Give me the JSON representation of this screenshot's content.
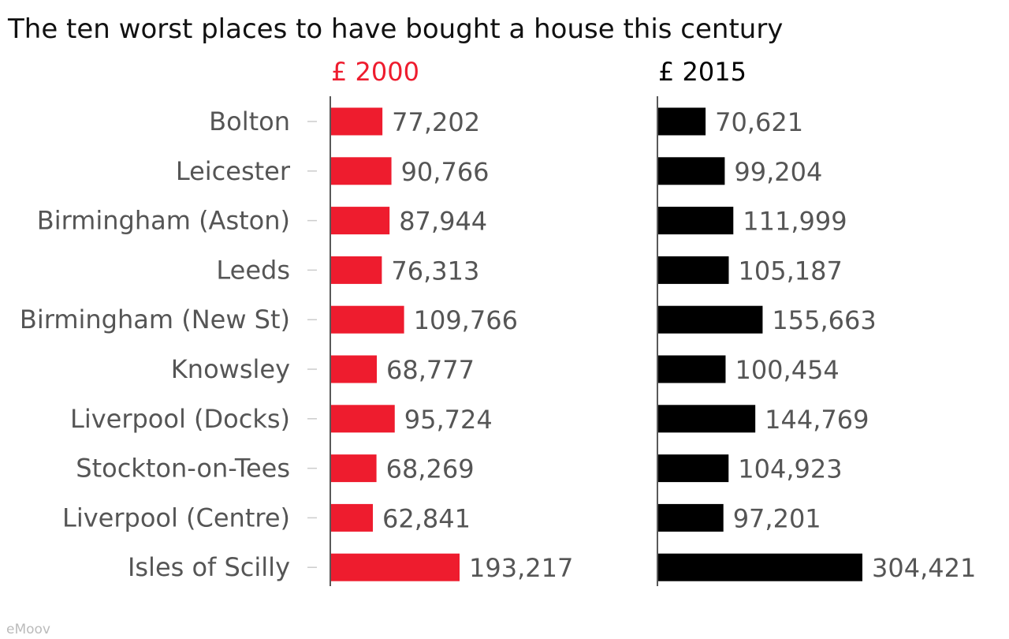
{
  "chart_data": {
    "type": "bar",
    "title": "The ten worst places to have bought a house this century",
    "source": "eMoov",
    "categories": [
      "Bolton",
      "Leicester",
      "Birmingham (Aston)",
      "Leeds",
      "Birmingham (New St)",
      "Knowsley",
      "Liverpool (Docks)",
      "Stockton-on-Tees",
      "Liverpool (Centre)",
      "Isles of Scilly"
    ],
    "series": [
      {
        "name": "£ 2000",
        "color": "#ee1c2e",
        "values": [
          77202,
          90766,
          87944,
          76313,
          109766,
          68777,
          95724,
          68269,
          62841,
          193217
        ],
        "labels": [
          "77,202",
          "90,766",
          "87,944",
          "76,313",
          "109,766",
          "68,777",
          "95,724",
          "68,269",
          "62,841",
          "193,217"
        ],
        "xlim": [
          0,
          193217
        ]
      },
      {
        "name": "£ 2015",
        "color": "#000000",
        "values": [
          70621,
          99204,
          111999,
          105187,
          155663,
          100454,
          144769,
          104923,
          97201,
          304421
        ],
        "labels": [
          "70,621",
          "99,204",
          "111,999",
          "105,187",
          "155,663",
          "100,454",
          "144,769",
          "104,923",
          "97,201",
          "304,421"
        ],
        "xlim": [
          0,
          304421
        ]
      }
    ],
    "grid": false,
    "orientation": "horizontal",
    "layout": "small-multiples"
  }
}
